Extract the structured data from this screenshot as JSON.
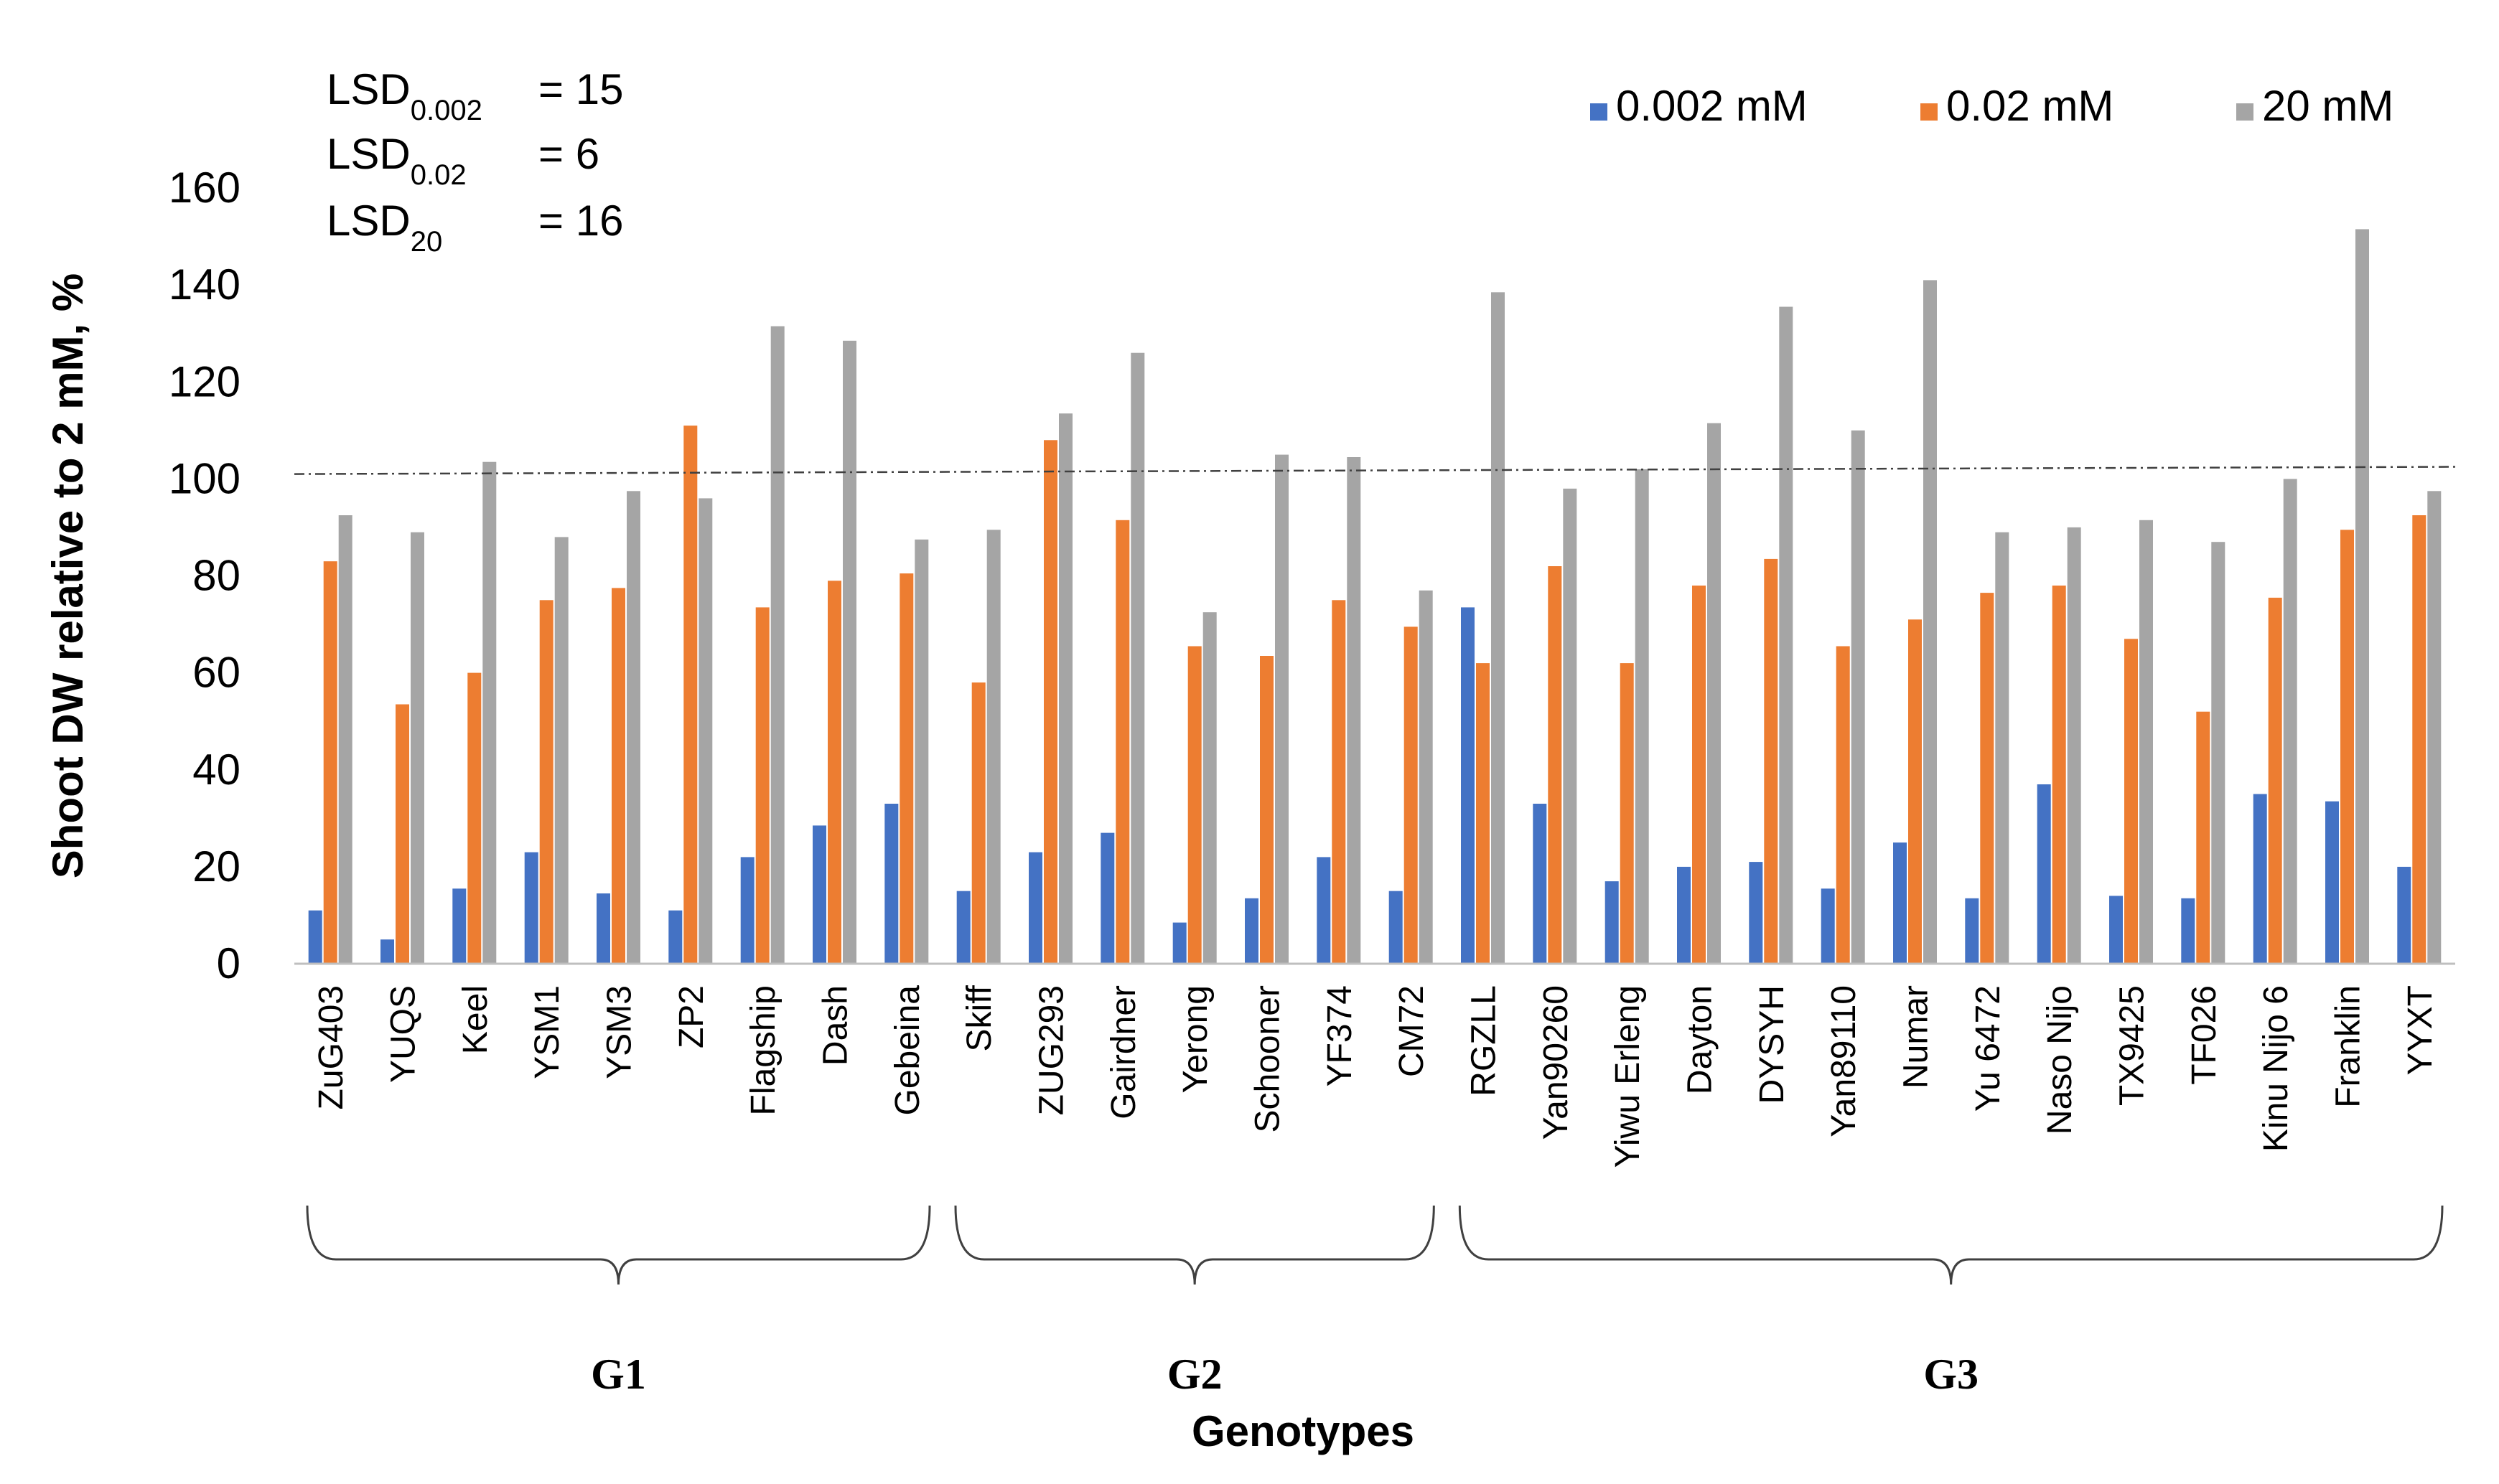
{
  "chart_data": {
    "type": "bar",
    "title": "",
    "xlabel": "Genotypes",
    "ylabel": "Shoot DW relative to 2 mM, %",
    "ylim": [
      0,
      160
    ],
    "yticks": [
      0,
      20,
      40,
      60,
      80,
      100,
      120,
      140,
      160
    ],
    "grid": false,
    "legend_position": "top-right",
    "reference_line": {
      "y_start": 101,
      "y_end": 102.5,
      "style": "dash-dot"
    },
    "lsd": [
      {
        "base": "LSD",
        "sub": "0.002",
        "value": "= 15"
      },
      {
        "base": "LSD",
        "sub": "0.02",
        "value": "= 6"
      },
      {
        "base": "LSD",
        "sub": "20",
        "value": "= 16"
      }
    ],
    "categories": [
      "ZuG403",
      "YUQS",
      "Keel",
      "YSM1",
      "YSM3",
      "ZP2",
      "Flagship",
      "Dash",
      "Gebeina",
      "Skiff",
      "ZUG293",
      "Gairdner",
      "Yerong",
      "Schooner",
      "YF374",
      "CM72",
      "RGZLL",
      "Yan90260",
      "Yiwu Erleng",
      "Dayton",
      "DYSYH",
      "Yan89110",
      "Numar",
      "Yu 6472",
      "Naso Nijo",
      "TX9425",
      "TF026",
      "Kinu Nijo 6",
      "Franklin",
      "YYXT"
    ],
    "series": [
      {
        "name": "0.002 mM",
        "color": "#4472C4",
        "values": [
          11,
          5,
          15.5,
          23,
          14.5,
          11,
          22,
          28.5,
          33,
          15,
          23,
          27,
          8.5,
          13.5,
          22,
          15,
          73.5,
          33,
          17,
          20,
          21,
          15.5,
          25,
          13.5,
          37,
          14,
          13.5,
          35,
          33.5,
          20
        ]
      },
      {
        "name": "0.02 mM",
        "color": "#ED7D31",
        "values": [
          83,
          53.5,
          60,
          75,
          77.5,
          111,
          73.5,
          79,
          80.5,
          58,
          108,
          91.5,
          65.5,
          63.5,
          75,
          69.5,
          62,
          82,
          62,
          78,
          83.5,
          65.5,
          71,
          76.5,
          78,
          67,
          52,
          75.5,
          89.5,
          92.5
        ]
      },
      {
        "name": "20 mM",
        "color": "#A5A5A5",
        "values": [
          92.5,
          89,
          103.5,
          88,
          97.5,
          96,
          131.5,
          128.5,
          87.5,
          89.5,
          113.5,
          126,
          72.5,
          105,
          104.5,
          77,
          138.5,
          98,
          102,
          111.5,
          135.5,
          110,
          141,
          89,
          90,
          91.5,
          87,
          100,
          151.5,
          97.5
        ]
      }
    ],
    "groups": [
      {
        "label": "G1",
        "start": 0,
        "end": 8
      },
      {
        "label": "G2",
        "start": 9,
        "end": 15
      },
      {
        "label": "G3",
        "start": 16,
        "end": 29
      }
    ]
  }
}
